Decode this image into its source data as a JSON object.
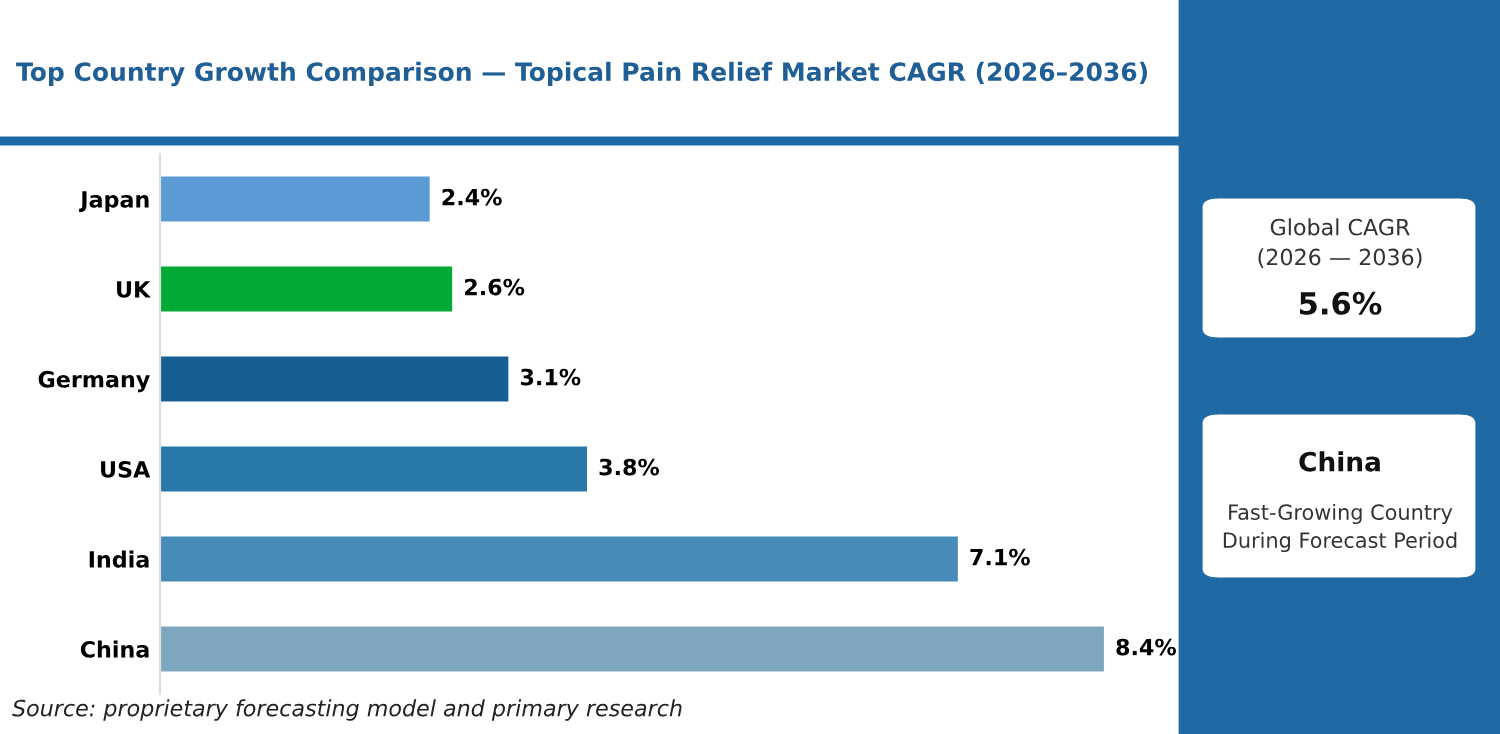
{
  "chart_data": {
    "type": "bar",
    "orientation": "horizontal",
    "title": "Top Country Growth Comparison — Topical Pain Relief Market CAGR (2026–2036)",
    "categories": [
      "Japan",
      "UK",
      "Germany",
      "USA",
      "India",
      "China"
    ],
    "values": [
      2.4,
      2.6,
      3.1,
      3.8,
      7.1,
      8.4
    ],
    "colors": [
      "#5b9bd5",
      "#00aa34",
      "#175e92",
      "#2878aa",
      "#478cb8",
      "#7ea6bf"
    ],
    "value_labels": [
      "2.4%",
      "2.6%",
      "3.1%",
      "3.8%",
      "7.1%",
      "8.4%"
    ],
    "grid": false,
    "legend": false,
    "annotations": [
      "Source: proprietary forecasting model and primary research",
      "Global CAGR\n(2026 — 2036)",
      "5.6%",
      "China",
      "Fast-Growing Country\nDuring Forecast Period"
    ]
  }
}
